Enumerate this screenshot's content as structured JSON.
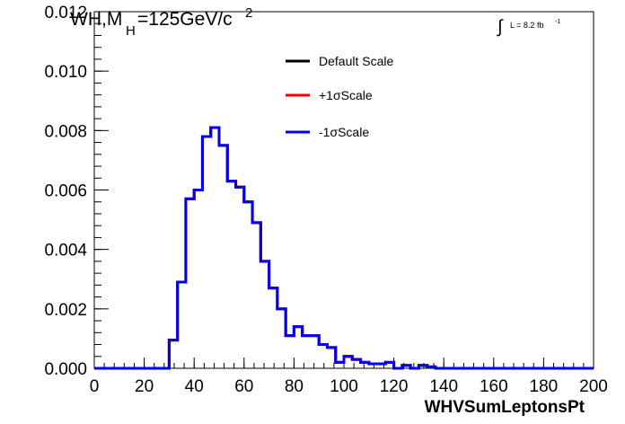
{
  "header": {
    "title_prefix": "WH,M",
    "title_subscript": "H",
    "title_main": "=125GeV/c",
    "title_superscript": "2",
    "lumi_symbol": "∫",
    "lumi_text": "L = 8.2 fb",
    "lumi_superscript": "-1"
  },
  "chart_data": {
    "type": "line",
    "style": "step-histogram",
    "xlabel": "WHVSumLeptonsPt",
    "ylabel": "",
    "xlim": [
      0,
      200
    ],
    "ylim": [
      0,
      0.012
    ],
    "x_ticks": [
      "0",
      "20",
      "40",
      "60",
      "80",
      "100",
      "120",
      "140",
      "160",
      "180",
      "200"
    ],
    "y_ticks": [
      "0.000",
      "0.002",
      "0.004",
      "0.006",
      "0.008",
      "0.010",
      "0.012"
    ],
    "grid": false,
    "legend_position": "top-center",
    "bin_edges": [
      0,
      3.33,
      6.67,
      10,
      13.33,
      16.67,
      20,
      23.33,
      26.67,
      30,
      33.33,
      36.67,
      40,
      43.33,
      46.67,
      50,
      53.33,
      56.67,
      60,
      63.33,
      66.67,
      70,
      73.33,
      76.67,
      80,
      83.33,
      86.67,
      90,
      93.33,
      96.67,
      100,
      103.33,
      106.67,
      110,
      113.33,
      116.67,
      120,
      123.33,
      126.67,
      130,
      133.33,
      136.67,
      140,
      143.33,
      146.67,
      150,
      153.33,
      156.67,
      160,
      163.33,
      166.67,
      170,
      173.33,
      176.67,
      180,
      183.33,
      186.67,
      190,
      193.33,
      196.67,
      200
    ],
    "series": [
      {
        "name": "Default Scale",
        "color": "#000000",
        "values": [
          0,
          0,
          0,
          0,
          0,
          0,
          0,
          0,
          0,
          0.00095,
          0.0029,
          0.0057,
          0.006,
          0.0078,
          0.0081,
          0.0075,
          0.0063,
          0.0061,
          0.0056,
          0.0049,
          0.0036,
          0.0027,
          0.002,
          0.0011,
          0.0014,
          0.0011,
          0.0011,
          0.0008,
          0.0007,
          0.0002,
          0.0004,
          0.0003,
          0.0002,
          0.00015,
          0.00015,
          0.0002,
          0,
          0.0001,
          0,
          0.0001,
          5e-05,
          0,
          0,
          0,
          0,
          0,
          0,
          0,
          0,
          0,
          0,
          0,
          0,
          0,
          0,
          0,
          0,
          0,
          0,
          0
        ]
      },
      {
        "name": "+1σScale",
        "color": "#ff0000",
        "values": [
          0,
          0,
          0,
          0,
          0,
          0,
          0,
          0,
          0,
          0.00095,
          0.0029,
          0.0057,
          0.006,
          0.0078,
          0.0081,
          0.0075,
          0.0063,
          0.0061,
          0.0056,
          0.0049,
          0.0036,
          0.0027,
          0.002,
          0.0011,
          0.0014,
          0.0011,
          0.0011,
          0.0008,
          0.0007,
          0.0002,
          0.0004,
          0.0003,
          0.0002,
          0.00015,
          0.00015,
          0.0002,
          0,
          0.0001,
          0,
          0.0001,
          5e-05,
          0,
          0,
          0,
          0,
          0,
          0,
          0,
          0,
          0,
          0,
          0,
          0,
          0,
          0,
          0,
          0,
          0,
          0,
          0
        ]
      },
      {
        "name": "-1σScale",
        "color": "#0000ee",
        "values": [
          0,
          0,
          0,
          0,
          0,
          0,
          0,
          0,
          0,
          0.00095,
          0.0029,
          0.0057,
          0.006,
          0.0078,
          0.0081,
          0.0075,
          0.0063,
          0.0061,
          0.0056,
          0.0049,
          0.0036,
          0.0027,
          0.002,
          0.0011,
          0.0014,
          0.0011,
          0.0011,
          0.0008,
          0.0007,
          0.0002,
          0.0004,
          0.0003,
          0.0002,
          0.00015,
          0.00015,
          0.0002,
          0,
          0.0001,
          0,
          0.0001,
          5e-05,
          0,
          0,
          0,
          0,
          0,
          0,
          0,
          0,
          0,
          0,
          0,
          0,
          0,
          0,
          0,
          0,
          0,
          0,
          0
        ]
      }
    ]
  }
}
